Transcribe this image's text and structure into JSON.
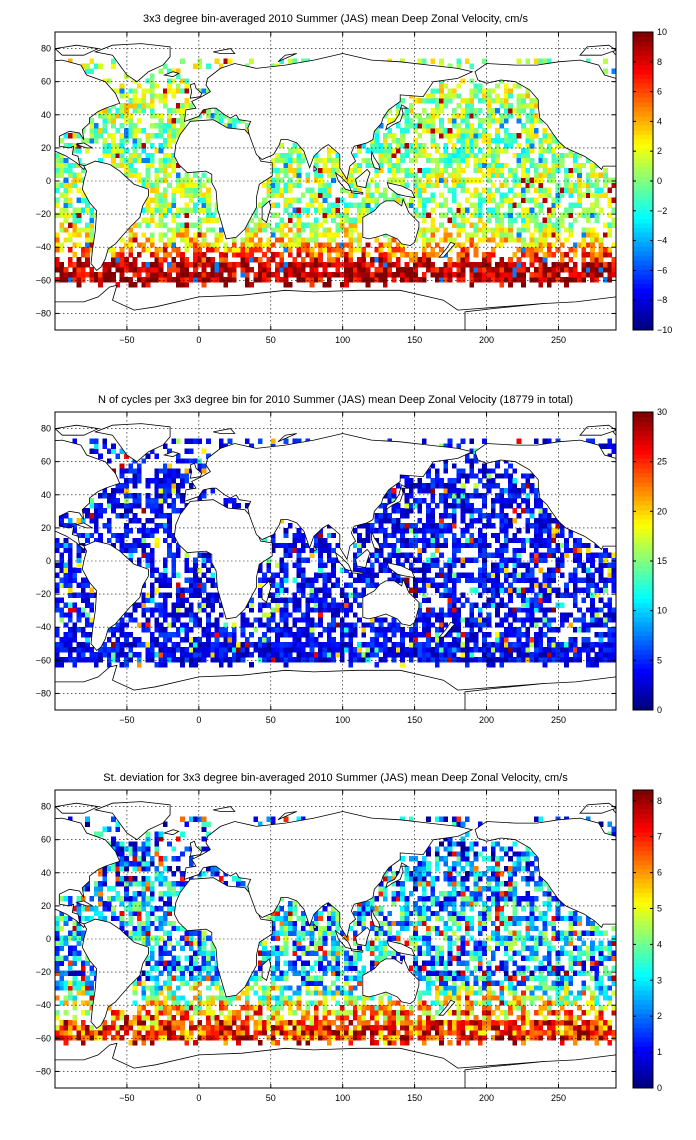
{
  "chart_data": [
    {
      "type": "heatmap",
      "title": "3x3 degree bin-averaged 2010 Summer (JAS) mean Deep Zonal Velocity, cm/s",
      "xlim": [
        -100,
        290
      ],
      "ylim": [
        -90,
        90
      ],
      "xticks": [
        -50,
        0,
        50,
        100,
        150,
        200,
        250
      ],
      "yticks": [
        80,
        60,
        40,
        20,
        0,
        -20,
        -40,
        -60,
        -80
      ],
      "grid": true,
      "colormap": "jet",
      "colorbar": {
        "min": -10,
        "max": 10,
        "ticks": [
          10,
          8,
          6,
          4,
          2,
          0,
          -2,
          -4,
          -6,
          -8,
          -10
        ]
      },
      "bin_size_deg": 3,
      "zonal_pattern_by_lat": [
        {
          "lat": 60,
          "typical_value": 1
        },
        {
          "lat": 40,
          "typical_value": 1
        },
        {
          "lat": 20,
          "typical_value": 0
        },
        {
          "lat": 0,
          "typical_value": 1
        },
        {
          "lat": -20,
          "typical_value": 0
        },
        {
          "lat": -40,
          "typical_value": 4
        },
        {
          "lat": -50,
          "typical_value": 9
        },
        {
          "lat": -58,
          "typical_value": 9
        }
      ]
    },
    {
      "type": "heatmap",
      "title": "N of cycles per 3x3 degree bin for 2010 Summer (JAS) mean Deep Zonal Velocity (18779 in total)",
      "xlim": [
        -100,
        290
      ],
      "ylim": [
        -90,
        90
      ],
      "xticks": [
        -50,
        0,
        50,
        100,
        150,
        200,
        250
      ],
      "yticks": [
        80,
        60,
        40,
        20,
        0,
        -20,
        -40,
        -60,
        -80
      ],
      "grid": true,
      "colormap": "jet",
      "colorbar": {
        "min": 0,
        "max": 30,
        "ticks": [
          30,
          25,
          20,
          15,
          10,
          5,
          0
        ]
      },
      "bin_size_deg": 3,
      "total": 18779,
      "typical_value": 3
    },
    {
      "type": "heatmap",
      "title": "St. deviation for 3x3 degree bin-averaged 2010 Summer (JAS) mean Deep Zonal Velocity, cm/s",
      "xlim": [
        -100,
        290
      ],
      "ylim": [
        -90,
        90
      ],
      "xticks": [
        -50,
        0,
        50,
        100,
        150,
        200,
        250
      ],
      "yticks": [
        80,
        60,
        40,
        20,
        0,
        -20,
        -40,
        -60,
        -80
      ],
      "grid": true,
      "colormap": "jet",
      "colorbar": {
        "min": 0,
        "max": 8.3,
        "ticks": [
          8,
          7,
          6,
          5,
          4,
          3,
          2,
          1,
          0
        ]
      },
      "bin_size_deg": 3,
      "zonal_pattern_by_lat": [
        {
          "lat": 40,
          "typical_value": 2
        },
        {
          "lat": 0,
          "typical_value": 3
        },
        {
          "lat": -20,
          "typical_value": 2
        },
        {
          "lat": -45,
          "typical_value": 6
        },
        {
          "lat": -58,
          "typical_value": 7
        }
      ]
    }
  ]
}
